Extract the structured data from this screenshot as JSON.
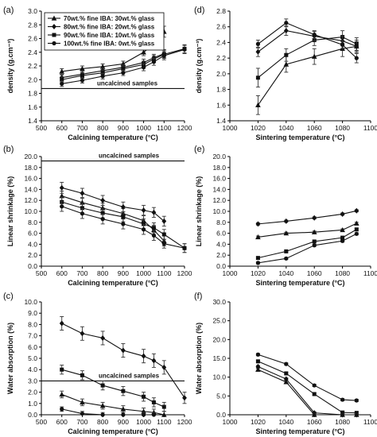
{
  "chart_data": [
    {
      "id": "a",
      "panel_label": "(a)",
      "type": "line",
      "xlabel": "Calcining temperature (°C)",
      "ylabel": "density (g.cm⁻³)",
      "xlim": [
        500,
        1200
      ],
      "ylim": [
        1.4,
        3.0
      ],
      "xticks": [
        500,
        600,
        700,
        800,
        900,
        1000,
        1100,
        1200
      ],
      "yticks": [
        1.4,
        1.6,
        1.8,
        2.0,
        2.2,
        2.4,
        2.6,
        2.8,
        3.0
      ],
      "ytick_decimals": 1,
      "legend": {
        "position": "top-left",
        "entries": [
          {
            "marker": "triangle",
            "label": "70wt.% fine IBA: 30wt.% glass"
          },
          {
            "marker": "diamond",
            "label": "80wt.% fine IBA: 20wt.% glass"
          },
          {
            "marker": "square",
            "label": "90wt.% fine IBA: 10wt.% glass"
          },
          {
            "marker": "circle",
            "label": "100wt.% fine IBA: 0wt.% glass"
          }
        ]
      },
      "reference_line": {
        "y": 1.87,
        "label": "uncalcined samples"
      },
      "series": [
        {
          "marker": "triangle",
          "x": [
            600,
            700,
            800,
            900,
            1000,
            1050,
            1100
          ],
          "y": [
            2.12,
            2.16,
            2.19,
            2.23,
            2.4,
            2.52,
            2.7
          ],
          "err": [
            0.04,
            0.04,
            0.04,
            0.04,
            0.05,
            0.06,
            0.08
          ]
        },
        {
          "marker": "diamond",
          "x": [
            600,
            700,
            800,
            900,
            1000,
            1050,
            1100
          ],
          "y": [
            2.03,
            2.08,
            2.13,
            2.18,
            2.25,
            2.32,
            2.38
          ],
          "err": [
            0.04,
            0.04,
            0.04,
            0.04,
            0.05,
            0.05,
            0.06
          ]
        },
        {
          "marker": "square",
          "x": [
            600,
            700,
            800,
            900,
            1000,
            1050,
            1100,
            1200
          ],
          "y": [
            2.0,
            2.06,
            2.1,
            2.16,
            2.22,
            2.3,
            2.37,
            2.45
          ],
          "err": [
            0.04,
            0.04,
            0.04,
            0.04,
            0.05,
            0.05,
            0.06,
            0.06
          ]
        },
        {
          "marker": "circle",
          "x": [
            600,
            700,
            800,
            900,
            1000,
            1050,
            1100,
            1200
          ],
          "y": [
            1.94,
            1.99,
            2.05,
            2.1,
            2.18,
            2.26,
            2.35,
            2.44
          ],
          "err": [
            0.04,
            0.04,
            0.04,
            0.04,
            0.05,
            0.05,
            0.06,
            0.06
          ]
        }
      ]
    },
    {
      "id": "b",
      "panel_label": "(b)",
      "type": "line",
      "xlabel": "Calcining temperature (°C)",
      "ylabel": "Linear shrinkage (%)",
      "xlim": [
        500,
        1200
      ],
      "ylim": [
        0,
        20
      ],
      "xticks": [
        500,
        600,
        700,
        800,
        900,
        1000,
        1100,
        1200
      ],
      "yticks": [
        0,
        2,
        4,
        6,
        8,
        10,
        12,
        14,
        16,
        18,
        20
      ],
      "ytick_decimals": 1,
      "reference_line": {
        "y": 19.2,
        "label": "uncalcined samples"
      },
      "series": [
        {
          "marker": "triangle",
          "x": [
            600,
            700,
            800,
            900,
            1000,
            1050,
            1100
          ],
          "y": [
            12.8,
            11.6,
            10.6,
            9.6,
            8.3,
            6.6,
            4.6
          ],
          "err": [
            0.9,
            0.9,
            0.9,
            0.9,
            0.9,
            0.9,
            0.9
          ]
        },
        {
          "marker": "diamond",
          "x": [
            600,
            700,
            800,
            900,
            1000,
            1050,
            1100
          ],
          "y": [
            14.3,
            13.3,
            12.0,
            10.8,
            10.2,
            9.8,
            8.2
          ],
          "err": [
            1.0,
            0.9,
            0.9,
            0.9,
            0.9,
            0.9,
            0.9
          ]
        },
        {
          "marker": "square",
          "x": [
            600,
            700,
            800,
            900,
            1000,
            1050,
            1100,
            1200
          ],
          "y": [
            11.7,
            10.6,
            9.7,
            9.0,
            7.7,
            7.0,
            5.8,
            3.3
          ],
          "err": [
            0.9,
            0.9,
            0.9,
            0.9,
            0.9,
            0.9,
            0.9,
            0.8
          ]
        },
        {
          "marker": "circle",
          "x": [
            600,
            700,
            800,
            900,
            1000,
            1050,
            1100,
            1200
          ],
          "y": [
            10.9,
            9.6,
            8.6,
            7.7,
            6.7,
            5.6,
            4.1,
            3.3
          ],
          "err": [
            0.9,
            0.9,
            0.9,
            0.9,
            0.9,
            0.9,
            0.8,
            0.8
          ]
        }
      ]
    },
    {
      "id": "c",
      "panel_label": "(c)",
      "type": "line",
      "xlabel": "Calcining temperature (°C)",
      "ylabel": "Water absorption (%)",
      "xlim": [
        500,
        1200
      ],
      "ylim": [
        0,
        10
      ],
      "xticks": [
        500,
        600,
        700,
        800,
        900,
        1000,
        1100,
        1200
      ],
      "yticks": [
        0,
        1,
        2,
        3,
        4,
        5,
        6,
        7,
        8,
        9,
        10
      ],
      "ytick_decimals": 1,
      "reference_line": {
        "y": 3.0,
        "label": "uncalcined samples"
      },
      "series": [
        {
          "marker": "diamond",
          "x": [
            600,
            700,
            800,
            900,
            1000,
            1050,
            1100,
            1200
          ],
          "y": [
            8.1,
            7.2,
            6.8,
            5.7,
            5.2,
            4.8,
            4.2,
            1.5
          ],
          "err": [
            0.6,
            0.6,
            0.6,
            0.6,
            0.6,
            0.6,
            0.6,
            0.5
          ]
        },
        {
          "marker": "square",
          "x": [
            600,
            700,
            800,
            900,
            1000,
            1050,
            1100
          ],
          "y": [
            4.0,
            3.5,
            2.6,
            2.1,
            1.6,
            1.1,
            0.7
          ],
          "err": [
            0.4,
            0.4,
            0.4,
            0.4,
            0.4,
            0.4,
            0.4
          ]
        },
        {
          "marker": "triangle",
          "x": [
            600,
            700,
            800,
            900,
            1000,
            1050,
            1100
          ],
          "y": [
            1.8,
            1.1,
            0.8,
            0.5,
            0.3,
            0.2,
            0.0
          ],
          "err": [
            0.3,
            0.3,
            0.3,
            0.3,
            0.3,
            0.3,
            0.3
          ]
        },
        {
          "marker": "circle",
          "x": [
            600,
            700,
            800,
            900,
            1000,
            1050
          ],
          "y": [
            0.5,
            0.1,
            0.0,
            0.0,
            0.0,
            0.0
          ],
          "err": [
            0.2,
            0.2,
            0.2,
            0.2,
            0.2,
            0.2
          ]
        }
      ]
    },
    {
      "id": "d",
      "panel_label": "(d)",
      "type": "line",
      "xlabel": "Sintering temperature (°C)",
      "ylabel": "density (g.cm⁻³)",
      "xlim": [
        1000,
        1100
      ],
      "ylim": [
        1.4,
        2.8
      ],
      "xticks": [
        1000,
        1020,
        1040,
        1060,
        1080,
        1100
      ],
      "yticks": [
        1.4,
        1.6,
        1.8,
        2.0,
        2.2,
        2.4,
        2.6,
        2.8
      ],
      "ytick_decimals": 1,
      "series": [
        {
          "marker": "triangle",
          "x": [
            1020,
            1040,
            1060,
            1080,
            1090
          ],
          "y": [
            1.6,
            2.12,
            2.22,
            2.32,
            2.35
          ],
          "err": [
            0.12,
            0.1,
            0.1,
            0.1,
            0.08
          ]
        },
        {
          "marker": "square",
          "x": [
            1020,
            1040,
            1060,
            1080,
            1090
          ],
          "y": [
            1.95,
            2.24,
            2.43,
            2.47,
            2.38
          ],
          "err": [
            0.12,
            0.08,
            0.07,
            0.08,
            0.08
          ]
        },
        {
          "marker": "diamond",
          "x": [
            1020,
            1040,
            1060,
            1080,
            1090
          ],
          "y": [
            2.28,
            2.55,
            2.48,
            2.42,
            2.35
          ],
          "err": [
            0.06,
            0.06,
            0.06,
            0.06,
            0.06
          ]
        },
        {
          "marker": "circle",
          "x": [
            1020,
            1040,
            1060,
            1080,
            1090
          ],
          "y": [
            2.38,
            2.65,
            2.5,
            2.37,
            2.2
          ],
          "err": [
            0.05,
            0.05,
            0.05,
            0.05,
            0.06
          ]
        }
      ]
    },
    {
      "id": "e",
      "panel_label": "(e)",
      "type": "line",
      "xlabel": "Sintering temperature (°C)",
      "ylabel": "Linear shrinkage (%)",
      "xlim": [
        1000,
        1100
      ],
      "ylim": [
        0,
        20
      ],
      "xticks": [
        1000,
        1020,
        1040,
        1060,
        1080,
        1100
      ],
      "yticks": [
        0,
        2,
        4,
        6,
        8,
        10,
        12,
        14,
        16,
        18,
        20
      ],
      "ytick_decimals": 1,
      "series": [
        {
          "marker": "diamond",
          "x": [
            1020,
            1040,
            1060,
            1080,
            1090
          ],
          "y": [
            7.7,
            8.2,
            8.8,
            9.5,
            10.1
          ],
          "err": [
            0.2,
            0.2,
            0.2,
            0.2,
            0.2
          ]
        },
        {
          "marker": "triangle",
          "x": [
            1020,
            1040,
            1060,
            1080,
            1090
          ],
          "y": [
            5.3,
            6.0,
            6.2,
            6.6,
            7.8
          ],
          "err": [
            0.2,
            0.2,
            0.2,
            0.2,
            0.2
          ]
        },
        {
          "marker": "square",
          "x": [
            1020,
            1040,
            1060,
            1080,
            1090
          ],
          "y": [
            1.5,
            2.7,
            4.5,
            5.2,
            6.7
          ],
          "err": [
            0.2,
            0.2,
            0.2,
            0.2,
            0.2
          ]
        },
        {
          "marker": "circle",
          "x": [
            1020,
            1040,
            1060,
            1080,
            1090
          ],
          "y": [
            0.6,
            1.4,
            3.8,
            4.6,
            5.9
          ],
          "err": [
            0.2,
            0.2,
            0.2,
            0.2,
            0.2
          ]
        }
      ]
    },
    {
      "id": "f",
      "panel_label": "(f)",
      "type": "line",
      "xlabel": "Sintering temperature (°C)",
      "ylabel": "Water absorption (%)",
      "xlim": [
        1000,
        1100
      ],
      "ylim": [
        0,
        30
      ],
      "xticks": [
        1000,
        1020,
        1040,
        1060,
        1080,
        1100
      ],
      "yticks": [
        0,
        5,
        10,
        15,
        20,
        25,
        30
      ],
      "ytick_decimals": 1,
      "series": [
        {
          "marker": "circle",
          "x": [
            1020,
            1040,
            1060,
            1080,
            1090
          ],
          "y": [
            16.0,
            13.5,
            7.8,
            4.0,
            3.8
          ],
          "err": [
            0.3,
            0.3,
            0.3,
            0.3,
            0.3
          ]
        },
        {
          "marker": "square",
          "x": [
            1020,
            1040,
            1060,
            1080,
            1090
          ],
          "y": [
            14.2,
            11.0,
            5.5,
            0.6,
            0.5
          ],
          "err": [
            0.3,
            0.3,
            0.3,
            0.3,
            0.3
          ]
        },
        {
          "marker": "diamond",
          "x": [
            1020,
            1040,
            1060,
            1080,
            1090
          ],
          "y": [
            12.8,
            9.5,
            0.5,
            0.0,
            0.0
          ],
          "err": [
            0.3,
            0.3,
            0.3,
            0.3,
            0.3
          ]
        },
        {
          "marker": "triangle",
          "x": [
            1020,
            1040,
            1060,
            1080,
            1090
          ],
          "y": [
            12.0,
            8.7,
            0.0,
            0.0,
            0.0
          ],
          "err": [
            0.3,
            0.3,
            0.3,
            0.3,
            0.3
          ]
        }
      ]
    }
  ]
}
